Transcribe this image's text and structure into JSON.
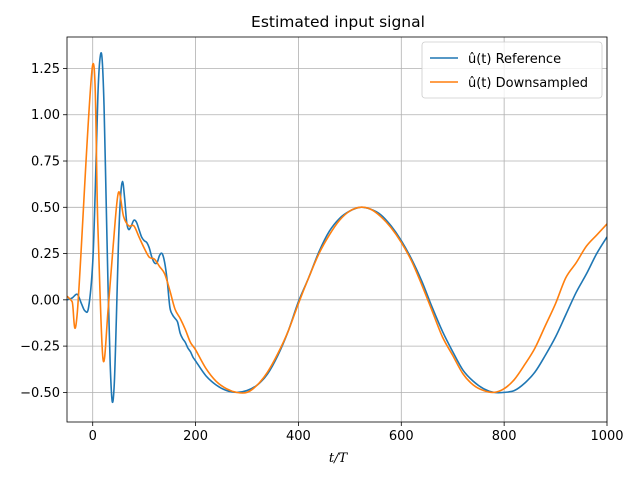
{
  "chart_data": {
    "type": "line",
    "title": "Estimated input signal",
    "xlabel": "t/T",
    "ylabel": "",
    "xlim": [
      -50,
      1000
    ],
    "ylim": [
      -0.66,
      1.42
    ],
    "xticks": [
      0,
      200,
      400,
      600,
      800,
      1000
    ],
    "xtick_labels": [
      "0",
      "200",
      "400",
      "600",
      "800",
      "1000"
    ],
    "yticks": [
      -0.5,
      -0.25,
      0.0,
      0.25,
      0.5,
      0.75,
      1.0,
      1.25
    ],
    "ytick_labels": [
      "−0.50",
      "−0.25",
      "0.00",
      "0.25",
      "0.50",
      "0.75",
      "1.00",
      "1.25"
    ],
    "grid": true,
    "legend_position": "top-right",
    "series": [
      {
        "name": "û(t) Reference",
        "color": "#1f77b4",
        "x": [
          -50,
          -40,
          -30,
          -22,
          -15,
          -8,
          0,
          5,
          10,
          14,
          18,
          22,
          26,
          30,
          34,
          38,
          42,
          46,
          50,
          54,
          58,
          62,
          66,
          70,
          75,
          80,
          85,
          90,
          95,
          100,
          105,
          110,
          115,
          120,
          125,
          130,
          135,
          140,
          145,
          150,
          155,
          160,
          165,
          170,
          175,
          180,
          185,
          190,
          195,
          200,
          220,
          240,
          260,
          280,
          300,
          320,
          340,
          360,
          380,
          400,
          420,
          440,
          460,
          480,
          500,
          520,
          540,
          560,
          580,
          600,
          620,
          640,
          660,
          680,
          700,
          720,
          740,
          760,
          780,
          800,
          820,
          840,
          860,
          880,
          900,
          920,
          940,
          960,
          980,
          1000
        ],
        "y": [
          0.0,
          0.01,
          0.03,
          -0.02,
          -0.06,
          -0.04,
          0.2,
          0.6,
          1.1,
          1.3,
          1.31,
          1.05,
          0.55,
          0.05,
          -0.35,
          -0.55,
          -0.45,
          -0.1,
          0.3,
          0.55,
          0.64,
          0.55,
          0.42,
          0.38,
          0.4,
          0.43,
          0.42,
          0.38,
          0.34,
          0.32,
          0.31,
          0.28,
          0.23,
          0.2,
          0.2,
          0.24,
          0.25,
          0.2,
          0.1,
          -0.04,
          -0.08,
          -0.1,
          -0.12,
          -0.18,
          -0.21,
          -0.23,
          -0.26,
          -0.28,
          -0.31,
          -0.33,
          -0.41,
          -0.46,
          -0.49,
          -0.5,
          -0.49,
          -0.46,
          -0.4,
          -0.3,
          -0.17,
          -0.01,
          0.12,
          0.26,
          0.37,
          0.44,
          0.48,
          0.5,
          0.49,
          0.46,
          0.4,
          0.32,
          0.22,
          0.1,
          -0.04,
          -0.17,
          -0.28,
          -0.38,
          -0.44,
          -0.48,
          -0.5,
          -0.5,
          -0.49,
          -0.45,
          -0.39,
          -0.3,
          -0.2,
          -0.08,
          0.04,
          0.14,
          0.25,
          0.34
        ]
      },
      {
        "name": "û(t) Downsampled",
        "color": "#ff7f0e",
        "x": [
          -50,
          -40,
          -30,
          0,
          10,
          20,
          30,
          40,
          50,
          60,
          70,
          80,
          90,
          100,
          110,
          120,
          130,
          140,
          150,
          160,
          170,
          180,
          190,
          200,
          220,
          240,
          260,
          280,
          300,
          320,
          340,
          360,
          380,
          400,
          420,
          440,
          460,
          480,
          500,
          520,
          540,
          560,
          580,
          600,
          620,
          640,
          660,
          680,
          700,
          720,
          740,
          760,
          780,
          800,
          820,
          840,
          860,
          880,
          900,
          920,
          940,
          960,
          980,
          1000
        ],
        "y": [
          0.02,
          -0.01,
          -0.07,
          1.27,
          0.4,
          -0.32,
          -0.05,
          0.3,
          0.58,
          0.45,
          0.4,
          0.4,
          0.34,
          0.28,
          0.23,
          0.22,
          0.18,
          0.14,
          0.05,
          -0.05,
          -0.1,
          -0.16,
          -0.23,
          -0.27,
          -0.37,
          -0.44,
          -0.48,
          -0.5,
          -0.5,
          -0.46,
          -0.39,
          -0.29,
          -0.17,
          -0.02,
          0.12,
          0.25,
          0.35,
          0.43,
          0.48,
          0.5,
          0.49,
          0.45,
          0.39,
          0.31,
          0.21,
          0.08,
          -0.06,
          -0.2,
          -0.3,
          -0.4,
          -0.46,
          -0.49,
          -0.5,
          -0.48,
          -0.43,
          -0.35,
          -0.26,
          -0.14,
          -0.02,
          0.12,
          0.2,
          0.29,
          0.35,
          0.41
        ]
      }
    ]
  }
}
